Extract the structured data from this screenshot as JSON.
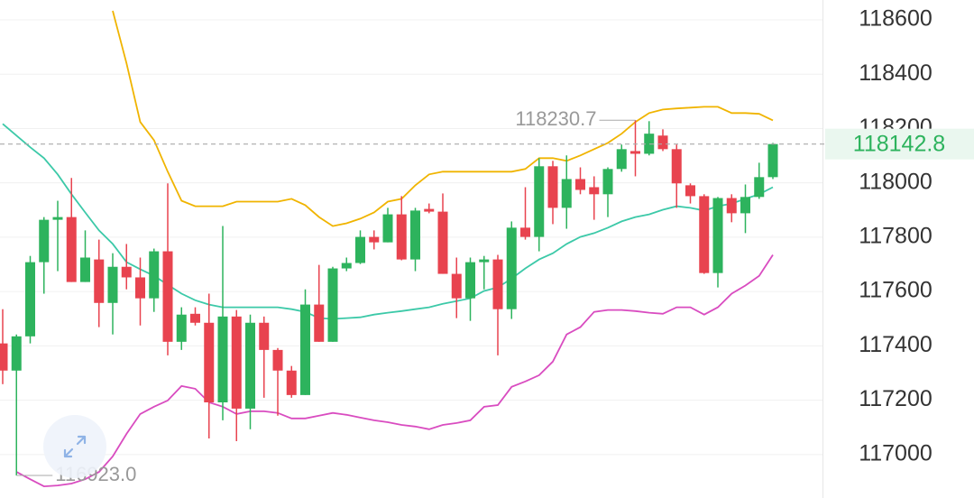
{
  "chart_data": {
    "type": "candlestick",
    "open": [
      117409,
      117309,
      117435,
      117708,
      117864,
      117874,
      117635,
      117718,
      117558,
      117691,
      117652,
      117575,
      117748,
      117415,
      117518,
      117485,
      117192,
      117508,
      117169,
      117485,
      117385,
      117309,
      117219,
      117552,
      117415,
      117685,
      117705,
      117801,
      117781,
      117884,
      117718,
      117904,
      117894,
      117665,
      117575,
      117708,
      117718,
      117535,
      117835,
      117801,
      118061,
      117908,
      118014,
      117984,
      117958,
      118051,
      118117,
      118107,
      118174,
      118124,
      117991,
      117951,
      117668,
      117944,
      117888,
      117948,
      118021
    ],
    "high": [
      117535,
      117442,
      117731,
      117874,
      117934,
      118018,
      117825,
      117791,
      117741,
      117775,
      117725,
      117758,
      117998,
      117542,
      117542,
      117592,
      117841,
      117532,
      117515,
      117508,
      117392,
      117326,
      117608,
      117698,
      117691,
      117725,
      117825,
      117825,
      117908,
      117951,
      117908,
      117924,
      117961,
      117725,
      117725,
      117731,
      117735,
      117858,
      117984,
      118091,
      118081,
      118101,
      118057,
      118024,
      118057,
      118141,
      118230.7,
      118227,
      118197,
      118141,
      117998,
      117958,
      117948,
      117958,
      117994,
      118074,
      118147
    ],
    "low": [
      117259,
      116923,
      117409,
      117592,
      117675,
      117635,
      117635,
      117469,
      117442,
      117608,
      117475,
      117525,
      117365,
      117385,
      117475,
      117059,
      117126,
      117049,
      117093,
      117209,
      117143,
      117209,
      117219,
      117415,
      117415,
      117675,
      117701,
      117755,
      117781,
      117715,
      117675,
      117888,
      117665,
      117502,
      117492,
      117608,
      117365,
      117499,
      117791,
      117748,
      117848,
      117831,
      117958,
      117864,
      117874,
      118041,
      118024,
      118101,
      118117,
      117908,
      117924,
      117665,
      117615,
      117855,
      117815,
      117941,
      118014
    ],
    "close": [
      117309,
      117435,
      117708,
      117864,
      117874,
      117635,
      117725,
      117558,
      117691,
      117652,
      117575,
      117748,
      117415,
      117515,
      117485,
      117192,
      117508,
      117169,
      117485,
      117385,
      117309,
      117219,
      117552,
      117415,
      117685,
      117705,
      117801,
      117781,
      117884,
      117718,
      117898,
      117894,
      117665,
      117575,
      117708,
      117718,
      117535,
      117835,
      117801,
      118061,
      117908,
      118014,
      117974,
      117958,
      118051,
      118124,
      118107,
      118181,
      118124,
      117998,
      117951,
      117668,
      117944,
      117888,
      117948,
      118021,
      118142.8
    ],
    "up_color": "#2db35d",
    "down_color": "#e8434f",
    "lines": [
      {
        "color": "#f0b400",
        "values": [
          null,
          null,
          null,
          null,
          null,
          null,
          null,
          null,
          118633,
          118440,
          118224,
          118157,
          118041,
          117934,
          117914,
          117914,
          117914,
          117931,
          117931,
          117931,
          117931,
          117941,
          117918,
          117874,
          117841,
          117851,
          117868,
          117891,
          117931,
          117941,
          117991,
          118031,
          118041,
          118041,
          118041,
          118041,
          118041,
          118041,
          118051,
          118091,
          118091,
          118081,
          118101,
          118124,
          118147,
          118181,
          118224,
          118257,
          118270,
          118274,
          118277,
          118280,
          118280,
          118257,
          118257,
          118254,
          118230
        ]
      },
      {
        "color": "#3cc9a8",
        "values": [
          118217,
          118174,
          118131,
          118091,
          118031,
          117958,
          117891,
          117825,
          117775,
          117708,
          117682,
          117658,
          117625,
          117592,
          117568,
          117552,
          117542,
          117542,
          117542,
          117542,
          117542,
          117535,
          117525,
          117502,
          117499,
          117502,
          117505,
          117515,
          117522,
          117528,
          117535,
          117542,
          117555,
          117565,
          117575,
          117602,
          117615,
          117648,
          117685,
          117718,
          117741,
          117775,
          117801,
          117815,
          117835,
          117858,
          117874,
          117884,
          117901,
          117914,
          117908,
          117898,
          117914,
          117924,
          117941,
          117958,
          117984
        ]
      },
      {
        "color": "#d94cc0",
        "values": [
          null,
          116936,
          116909,
          116883,
          116886,
          116893,
          116909,
          116936,
          116993,
          117076,
          117149,
          117176,
          117199,
          117252,
          117242,
          117192,
          117176,
          117149,
          117159,
          117159,
          117153,
          117133,
          117133,
          117143,
          117153,
          117146,
          117136,
          117126,
          117119,
          117109,
          117103,
          117093,
          117109,
          117116,
          117126,
          117176,
          117182,
          117249,
          117269,
          117292,
          117342,
          117442,
          117469,
          117525,
          117532,
          117532,
          117528,
          117522,
          117518,
          117542,
          117542,
          117515,
          117542,
          117592,
          117622,
          117658,
          117735
        ]
      }
    ],
    "ylim": [
      116840,
      118673
    ],
    "yticks": [
      117000,
      117200,
      117400,
      117600,
      117800,
      118000,
      118200,
      118400,
      118600
    ],
    "grid": true,
    "high_label": "118230.7",
    "low_label": "116923.0",
    "last_label": "118142.8"
  }
}
